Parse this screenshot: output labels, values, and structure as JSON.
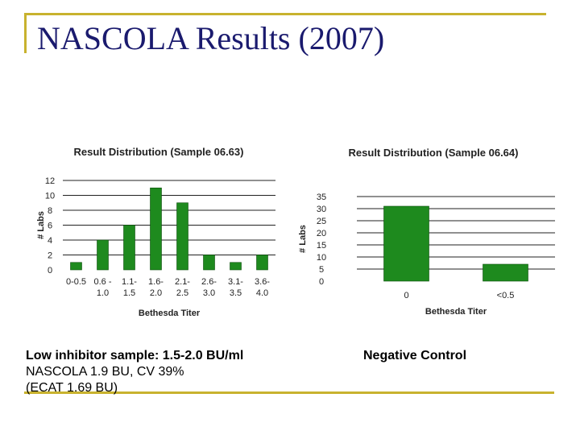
{
  "slide": {
    "title": "NASCOLA Results (2007)",
    "accent_color": "#c8b22e",
    "title_color": "#1a1a6e"
  },
  "left_caption": {
    "line1": "Low inhibitor sample: 1.5-2.0 BU/ml",
    "line2": "NASCOLA 1.9 BU, CV 39%",
    "line3": "(ECAT 1.69 BU)"
  },
  "right_caption": {
    "line1": "Negative Control"
  },
  "chart_data": [
    {
      "type": "bar",
      "title": "Result Distribution (Sample 06.63)",
      "xlabel": "Bethesda Titer",
      "ylabel": "# Labs",
      "categories": [
        [
          "0-0.5",
          ""
        ],
        [
          "0.6 -",
          "1.0"
        ],
        [
          "1.1-",
          "1.5"
        ],
        [
          "1.6-",
          "2.0"
        ],
        [
          "2.1-",
          "2.5"
        ],
        [
          "2.6-",
          "3.0"
        ],
        [
          "3.1-",
          "3.5"
        ],
        [
          "3.6-",
          "4.0"
        ]
      ],
      "values": [
        1,
        4,
        6,
        11,
        9,
        2,
        1,
        2
      ],
      "yticks": [
        0,
        2,
        4,
        6,
        8,
        10,
        12
      ],
      "ylim": [
        0,
        12
      ],
      "grid": true,
      "bar_color": "#1e8a1e"
    },
    {
      "type": "bar",
      "title": "Result Distribution (Sample 06.64)",
      "xlabel": "Bethesda Titer",
      "ylabel": "# Labs",
      "categories": [
        [
          "0",
          ""
        ],
        [
          "<0.5",
          ""
        ]
      ],
      "values": [
        31,
        7
      ],
      "yticks": [
        0,
        5,
        10,
        15,
        20,
        25,
        30,
        35
      ],
      "ylim": [
        0,
        35
      ],
      "grid": true,
      "bar_color": "#1e8a1e"
    }
  ]
}
